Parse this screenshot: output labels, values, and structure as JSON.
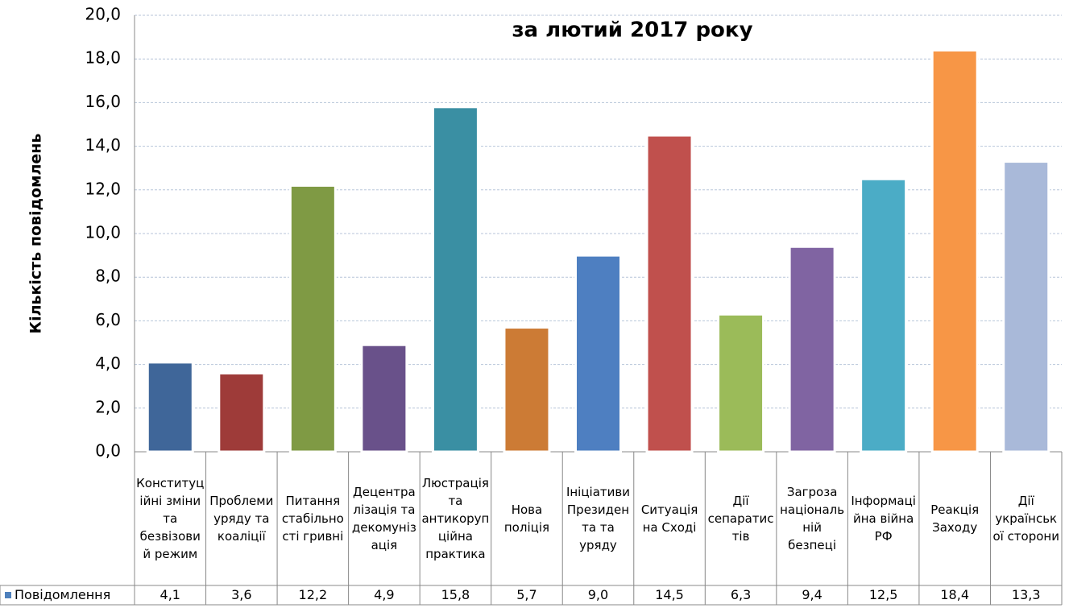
{
  "chart_data": {
    "type": "bar",
    "title": "за лютий 2017 року",
    "y_label": "Кількість повідомлень",
    "categories": [
      "Конституційні зміни та безвізовий режим",
      "Проблеми уряду та коаліції",
      "Питання стабільності гривні",
      "Децентралізація та декомунізація",
      "Люстрація та антикорупційна практика",
      "Нова поліція",
      "Ініціативи Президента та уряду",
      "Ситуація на Сході",
      "Дії сепаратистів",
      "Загроза національній безпеці",
      "Інформаційна війна РФ",
      "Реакція Заходу",
      "Дії української сторони"
    ],
    "series": [
      {
        "name": "Повідомлення",
        "color": "#4f81bd",
        "values": [
          4.1,
          3.6,
          12.2,
          4.9,
          15.8,
          5.7,
          9.0,
          14.5,
          6.3,
          9.4,
          12.5,
          18.4,
          13.3
        ],
        "value_labels": [
          "4,1",
          "3,6",
          "12,2",
          "4,9",
          "15,8",
          "5,7",
          "9,0",
          "14,5",
          "6,3",
          "9,4",
          "12,5",
          "18,4",
          "13,3"
        ]
      }
    ],
    "colors": [
      "#3f6699",
      "#9e3b39",
      "#7f9a44",
      "#69518a",
      "#3a8fa3",
      "#cc7b35",
      "#4e7fc1",
      "#c0504d",
      "#9bbb59",
      "#8064a2",
      "#4bacc6",
      "#f79646",
      "#a9b9d9"
    ],
    "ylim": [
      0,
      20
    ],
    "yticks": [
      {
        "value": 0,
        "label": "0,0"
      },
      {
        "value": 2,
        "label": "2,0"
      },
      {
        "value": 4,
        "label": "4,0"
      },
      {
        "value": 6,
        "label": "6,0"
      },
      {
        "value": 8,
        "label": "8,0"
      },
      {
        "value": 10,
        "label": "10,0"
      },
      {
        "value": 12,
        "label": "12,0"
      },
      {
        "value": 14,
        "label": "14,0"
      },
      {
        "value": 16,
        "label": "16,0"
      },
      {
        "value": 18,
        "label": "18,0"
      },
      {
        "value": 20,
        "label": "20,0"
      }
    ],
    "grid": true
  }
}
